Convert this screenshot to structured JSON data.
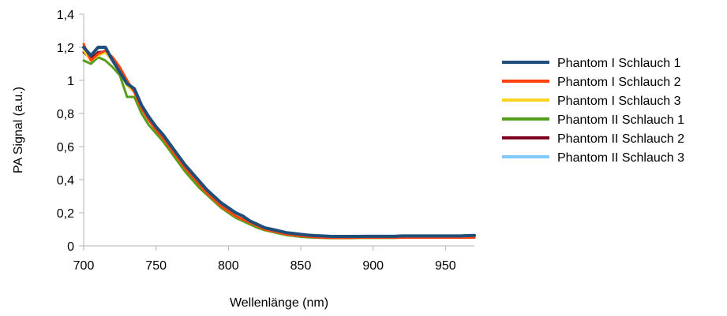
{
  "chart_data": {
    "type": "line",
    "title": "",
    "xlabel": "Wellenlänge (nm)",
    "ylabel": "PA Signal (a.u.)",
    "xlim": [
      700,
      970
    ],
    "ylim": [
      0,
      1.4
    ],
    "x_ticks": [
      700,
      750,
      800,
      850,
      900,
      950
    ],
    "x_tick_labels": [
      "700",
      "750",
      "800",
      "850",
      "900",
      "950"
    ],
    "y_ticks": [
      0,
      0.2,
      0.4,
      0.6,
      0.8,
      1,
      1.2,
      1.4
    ],
    "y_tick_labels": [
      "0",
      "0,2",
      "0,4",
      "0,6",
      "0,8",
      "1",
      "1,2",
      "1,4"
    ],
    "grid": false,
    "legend_position": "right",
    "x": [
      700,
      705,
      710,
      715,
      720,
      725,
      730,
      735,
      740,
      745,
      750,
      755,
      760,
      765,
      770,
      775,
      780,
      785,
      790,
      795,
      800,
      805,
      810,
      815,
      820,
      825,
      830,
      835,
      840,
      845,
      850,
      855,
      860,
      865,
      870,
      875,
      880,
      885,
      890,
      895,
      900,
      905,
      910,
      915,
      920,
      925,
      930,
      935,
      940,
      945,
      950,
      955,
      960,
      965,
      970
    ],
    "series": [
      {
        "name": "Phantom I Schlauch 1",
        "color": "#1f4e79",
        "values": [
          1.2,
          1.15,
          1.2,
          1.2,
          1.12,
          1.05,
          0.98,
          0.95,
          0.85,
          0.78,
          0.72,
          0.67,
          0.61,
          0.55,
          0.49,
          0.44,
          0.39,
          0.34,
          0.3,
          0.26,
          0.23,
          0.2,
          0.18,
          0.15,
          0.13,
          0.11,
          0.1,
          0.09,
          0.08,
          0.075,
          0.07,
          0.065,
          0.062,
          0.06,
          0.058,
          0.057,
          0.057,
          0.057,
          0.057,
          0.058,
          0.058,
          0.058,
          0.058,
          0.058,
          0.06,
          0.06,
          0.06,
          0.06,
          0.06,
          0.06,
          0.06,
          0.06,
          0.06,
          0.062,
          0.063
        ]
      },
      {
        "name": "Phantom I Schlauch 2",
        "color": "#ff420e",
        "values": [
          1.22,
          1.12,
          1.16,
          1.18,
          1.14,
          1.08,
          1.0,
          0.93,
          0.83,
          0.76,
          0.7,
          0.65,
          0.59,
          0.53,
          0.47,
          0.42,
          0.37,
          0.32,
          0.28,
          0.24,
          0.21,
          0.18,
          0.16,
          0.14,
          0.12,
          0.1,
          0.09,
          0.08,
          0.07,
          0.065,
          0.06,
          0.056,
          0.053,
          0.05,
          0.049,
          0.049,
          0.049,
          0.049,
          0.05,
          0.05,
          0.05,
          0.05,
          0.05,
          0.05,
          0.05,
          0.05,
          0.05,
          0.05,
          0.05,
          0.05,
          0.05,
          0.05,
          0.05,
          0.05,
          0.05
        ]
      },
      {
        "name": "Phantom I Schlauch 3",
        "color": "#ffd320",
        "values": [
          1.18,
          1.12,
          1.15,
          1.17,
          1.12,
          1.05,
          0.97,
          0.93,
          0.83,
          0.76,
          0.7,
          0.65,
          0.59,
          0.53,
          0.47,
          0.42,
          0.37,
          0.32,
          0.28,
          0.24,
          0.21,
          0.18,
          0.16,
          0.14,
          0.12,
          0.1,
          0.09,
          0.08,
          0.07,
          0.065,
          0.06,
          0.057,
          0.055,
          0.053,
          0.052,
          0.052,
          0.052,
          0.052,
          0.052,
          0.053,
          0.053,
          0.053,
          0.053,
          0.053,
          0.054,
          0.054,
          0.054,
          0.054,
          0.054,
          0.054,
          0.054,
          0.055,
          0.055,
          0.055,
          0.055
        ]
      },
      {
        "name": "Phantom II Schlauch 1",
        "color": "#579d1c",
        "values": [
          1.12,
          1.1,
          1.14,
          1.12,
          1.08,
          1.03,
          0.9,
          0.9,
          0.8,
          0.73,
          0.68,
          0.63,
          0.57,
          0.51,
          0.45,
          0.4,
          0.35,
          0.31,
          0.27,
          0.23,
          0.2,
          0.17,
          0.15,
          0.13,
          0.11,
          0.095,
          0.085,
          0.075,
          0.065,
          0.06,
          0.055,
          0.052,
          0.05,
          0.048,
          0.047,
          0.047,
          0.047,
          0.047,
          0.048,
          0.048,
          0.048,
          0.048,
          0.048,
          0.048,
          0.05,
          0.05,
          0.05,
          0.05,
          0.05,
          0.05,
          0.05,
          0.05,
          0.05,
          0.05,
          0.05
        ]
      },
      {
        "name": "Phantom II Schlauch 2",
        "color": "#7e0021",
        "values": [
          1.17,
          1.13,
          1.17,
          1.17,
          1.12,
          1.05,
          0.97,
          0.93,
          0.83,
          0.76,
          0.7,
          0.65,
          0.59,
          0.53,
          0.47,
          0.42,
          0.37,
          0.32,
          0.28,
          0.24,
          0.21,
          0.18,
          0.16,
          0.14,
          0.12,
          0.1,
          0.09,
          0.08,
          0.07,
          0.065,
          0.06,
          0.057,
          0.054,
          0.052,
          0.051,
          0.051,
          0.051,
          0.051,
          0.051,
          0.052,
          0.052,
          0.052,
          0.052,
          0.052,
          0.053,
          0.053,
          0.053,
          0.053,
          0.053,
          0.053,
          0.053,
          0.053,
          0.053,
          0.054,
          0.054
        ]
      },
      {
        "name": "Phantom II Schlauch 3",
        "color": "#83caff",
        "values": [
          1.18,
          1.13,
          1.17,
          1.18,
          1.12,
          1.05,
          0.97,
          0.93,
          0.83,
          0.76,
          0.7,
          0.65,
          0.59,
          0.53,
          0.47,
          0.42,
          0.37,
          0.32,
          0.28,
          0.24,
          0.21,
          0.18,
          0.16,
          0.14,
          0.12,
          0.1,
          0.09,
          0.08,
          0.07,
          0.065,
          0.06,
          0.057,
          0.054,
          0.052,
          0.051,
          0.051,
          0.051,
          0.051,
          0.051,
          0.052,
          0.052,
          0.052,
          0.052,
          0.052,
          0.053,
          0.053,
          0.053,
          0.053,
          0.053,
          0.053,
          0.053,
          0.053,
          0.053,
          0.054,
          0.054
        ]
      }
    ]
  }
}
